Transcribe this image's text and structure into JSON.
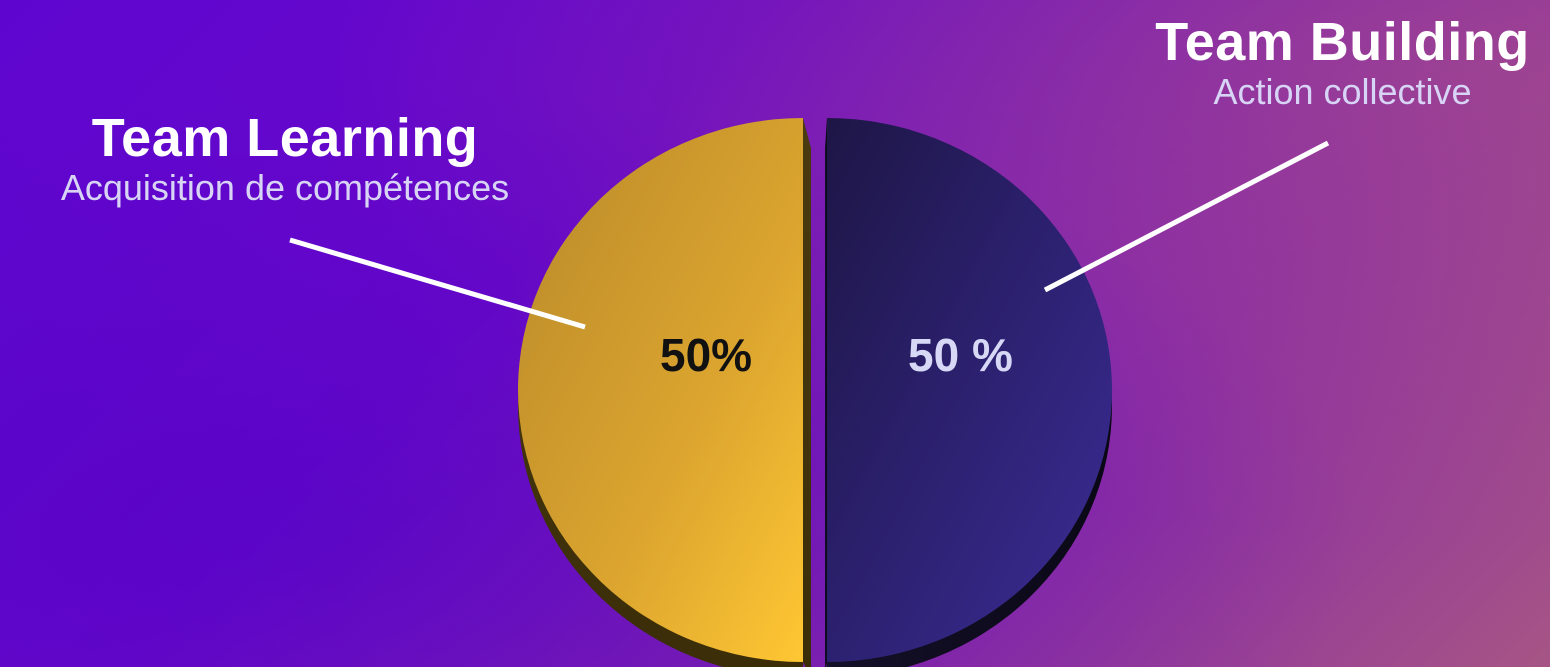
{
  "chart_data": {
    "type": "pie",
    "slices": [
      {
        "name": "Team Learning",
        "subtitle": "Acquisition de compétences",
        "value": 50,
        "value_label": "50%",
        "color": "#e0a82e"
      },
      {
        "name": "Team Building",
        "subtitle": "Action collective",
        "value": 50,
        "value_label": "50 %",
        "color": "#2e2070"
      }
    ],
    "exploded": true,
    "style": "3d",
    "legend": "none"
  },
  "colors": {
    "background_start": "#5e06d0",
    "background_end": "#a65585",
    "leader_line": "#ffffff"
  }
}
